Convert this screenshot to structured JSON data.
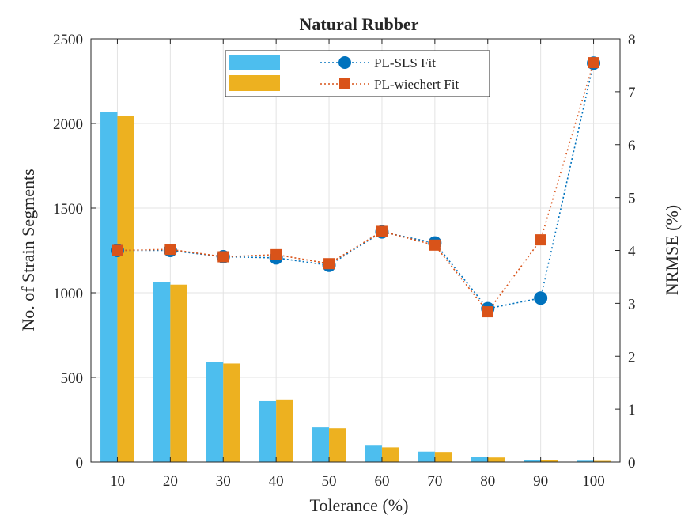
{
  "chart_data": {
    "type": "bar",
    "title": "Natural Rubber",
    "xlabel": "Tolerance (%)",
    "ylabel": "No. of Strain Segments",
    "ylabel_right": "NRMSE (%)",
    "categories": [
      "10",
      "20",
      "30",
      "40",
      "50",
      "60",
      "70",
      "80",
      "90",
      "100"
    ],
    "ylim": [
      0,
      2500
    ],
    "yticks": [
      "0",
      "500",
      "1000",
      "1500",
      "2000",
      "2500"
    ],
    "ylim_right": [
      0,
      8
    ],
    "yticks_right": [
      "0",
      "1",
      "2",
      "3",
      "4",
      "5",
      "6",
      "7",
      "8"
    ],
    "grid": true,
    "legend_position": "top-center",
    "bar_series": [
      {
        "color": "#4DBEEE",
        "values": [
          2070,
          1065,
          590,
          360,
          205,
          97,
          62,
          28,
          14,
          8
        ]
      },
      {
        "color": "#EDB120",
        "values": [
          2045,
          1048,
          582,
          370,
          200,
          87,
          60,
          27,
          13,
          7
        ]
      }
    ],
    "line_series": [
      {
        "name": "PL-SLS Fit",
        "color": "#0072BD",
        "marker": "circle",
        "style": "dotted",
        "values": [
          4.0,
          4.0,
          3.88,
          3.86,
          3.72,
          4.35,
          4.14,
          2.9,
          3.1,
          7.54
        ]
      },
      {
        "name": "PL-wiechert Fit",
        "color": "#D95319",
        "marker": "square",
        "style": "dotted",
        "values": [
          4.0,
          4.02,
          3.88,
          3.92,
          3.75,
          4.36,
          4.1,
          2.84,
          4.2,
          7.55
        ]
      }
    ]
  }
}
